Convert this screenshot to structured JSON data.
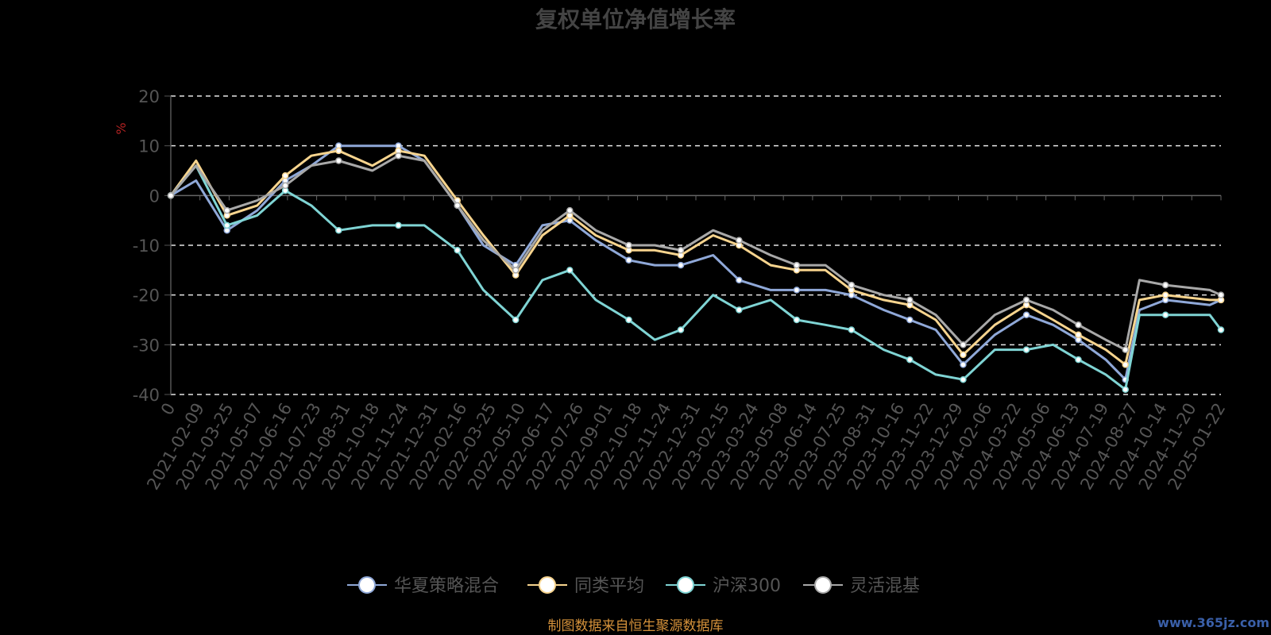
{
  "chart_data": {
    "type": "line",
    "title": "复权单位净值增长率",
    "ylabel": "%",
    "ylim": [
      -40,
      20
    ],
    "yticks": [
      20,
      10,
      0,
      -10,
      -20,
      -30,
      -40
    ],
    "grid": true,
    "legend_position": "bottom",
    "x_tick_labels": [
      "0",
      "2021-02-09",
      "2021-03-25",
      "2021-05-07",
      "2021-06-16",
      "2021-07-23",
      "2021-08-31",
      "2021-10-18",
      "2021-11-24",
      "2021-12-31",
      "2022-02-16",
      "2022-03-25",
      "2022-05-10",
      "2022-06-17",
      "2022-07-26",
      "2022-09-01",
      "2022-10-18",
      "2022-11-24",
      "2022-12-31",
      "2023-02-15",
      "2023-03-24",
      "2023-05-08",
      "2023-06-14",
      "2023-07-25",
      "2023-08-31",
      "2023-10-16",
      "2023-11-22",
      "2023-12-29",
      "2024-02-06",
      "2024-03-22",
      "2024-05-06",
      "2024-06-13",
      "2024-07-19",
      "2024-08-27",
      "2024-10-14",
      "2024-11-20",
      "2025-01-22"
    ],
    "x": [
      "2021-01-04",
      "2021-02-09",
      "2021-03-25",
      "2021-05-07",
      "2021-06-16",
      "2021-07-23",
      "2021-08-31",
      "2021-10-18",
      "2021-11-24",
      "2021-12-31",
      "2022-02-16",
      "2022-03-25",
      "2022-05-10",
      "2022-06-17",
      "2022-07-26",
      "2022-09-01",
      "2022-10-18",
      "2022-11-24",
      "2022-12-31",
      "2023-02-15",
      "2023-03-24",
      "2023-05-08",
      "2023-06-14",
      "2023-07-25",
      "2023-08-31",
      "2023-10-16",
      "2023-11-22",
      "2023-12-29",
      "2024-02-06",
      "2024-03-22",
      "2024-05-06",
      "2024-06-13",
      "2024-07-19",
      "2024-08-27",
      "2024-09-24",
      "2024-10-14",
      "2024-11-20",
      "2025-01-22",
      "2025-02-07"
    ],
    "series": [
      {
        "name": "华夏策略混合",
        "color": "#8fa8d8",
        "values": [
          0,
          3,
          -7,
          -3,
          3,
          6,
          10,
          10,
          10,
          7,
          -2,
          -10,
          -14,
          -6,
          -5,
          -9,
          -13,
          -14,
          -14,
          -12,
          -17,
          -19,
          -19,
          -19,
          -20,
          -23,
          -25,
          -27,
          -34,
          -28,
          -24,
          -26,
          -29,
          -33,
          -37,
          -23,
          -21,
          -22,
          -21
        ]
      },
      {
        "name": "同类平均",
        "color": "#f7d48e",
        "values": [
          0,
          7,
          -4,
          -2,
          4,
          8,
          9,
          6,
          9,
          8,
          -1,
          -8,
          -16,
          -8,
          -4,
          -8,
          -11,
          -11,
          -12,
          -8,
          -10,
          -14,
          -15,
          -15,
          -19,
          -21,
          -22,
          -25,
          -32,
          -26,
          -22,
          -25,
          -28,
          -31,
          -34,
          -21,
          -20,
          -21,
          -21
        ]
      },
      {
        "name": "沪深300",
        "color": "#7fd4d4",
        "values": [
          0,
          6,
          -6,
          -4,
          1,
          -2,
          -7,
          -6,
          -6,
          -6,
          -11,
          -19,
          -25,
          -17,
          -15,
          -21,
          -25,
          -29,
          -27,
          -20,
          -23,
          -21,
          -25,
          -26,
          -27,
          -31,
          -33,
          -36,
          -37,
          -31,
          -31,
          -30,
          -33,
          -36,
          -39,
          -24,
          -24,
          -24,
          -27
        ]
      },
      {
        "name": "灵活混基",
        "color": "#a8a8a8",
        "values": [
          0,
          6,
          -3,
          -1,
          2,
          6,
          7,
          5,
          8,
          7,
          -2,
          -9,
          -15,
          -7,
          -3,
          -7,
          -10,
          -10,
          -11,
          -7,
          -9,
          -12,
          -14,
          -14,
          -18,
          -20,
          -21,
          -24,
          -30,
          -24,
          -21,
          -23,
          -26,
          -29,
          -31,
          -17,
          -18,
          -19,
          -20
        ]
      }
    ]
  },
  "footer": {
    "source": "制图数据来自恒生聚源数据库",
    "watermark": "www.365jz.com"
  }
}
